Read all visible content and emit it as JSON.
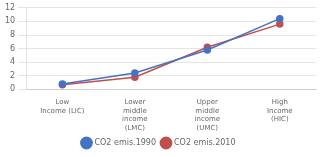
{
  "chart_data": {
    "type": "line",
    "categories": [
      "Low\nIncome (LIC)",
      "Lower\nmiddle\nincome\n(LMC)",
      "Upper\nmiddle\nincome\n(UMC)",
      "High\nIncome\n(HIC)"
    ],
    "series": [
      {
        "name": "CO2 emis.1990",
        "color": "#4472C4",
        "marker": "circle",
        "values": [
          0.8,
          2.4,
          5.8,
          10.4
        ]
      },
      {
        "name": "CO2 emis.2010",
        "color": "#C0504D",
        "marker": "square",
        "values": [
          0.7,
          1.8,
          6.2,
          9.6
        ]
      }
    ],
    "ylim": [
      0,
      12
    ],
    "yticks": [
      0,
      2,
      4,
      6,
      8,
      10,
      12
    ],
    "grid": true,
    "legend": "bottom"
  }
}
